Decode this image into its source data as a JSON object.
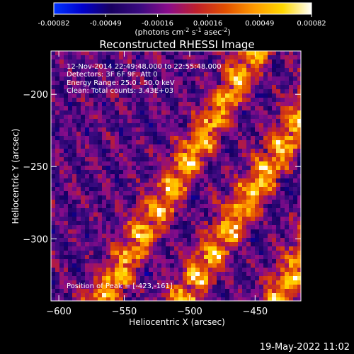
{
  "chart_data": {
    "type": "heatmap",
    "title": "Reconstructed RHESSI Image",
    "xlabel": "Heliocentric X (arcsec)",
    "ylabel": "Heliocentric Y (arcsec)",
    "xlim": [
      -606,
      -415
    ],
    "ylim": [
      -343,
      -170
    ],
    "x_ticks": [
      -600,
      -550,
      -500,
      -450
    ],
    "y_ticks": [
      -300,
      -250,
      -200
    ],
    "colorbar": {
      "range": [
        -0.00082,
        0.00082
      ],
      "ticks": [
        "-0.00082",
        "-0.00049",
        "-0.00016",
        "0.00016",
        "0.00049",
        "0.00082"
      ],
      "unit_label_parts": [
        "(photons cm",
        "-2",
        " s",
        "-1",
        " asec",
        "-2",
        ")"
      ],
      "colors": [
        "#0033ff",
        "#0000cc",
        "#180060",
        "#3a0a80",
        "#8a0c8a",
        "#c0202a",
        "#e25000",
        "#ff9a00",
        "#ffd800",
        "#ffffff"
      ]
    },
    "annotations": [
      "12-Nov-2014 22:49:48.000 to 22:55:48.000",
      "Detectors: 3F 6F 9F, Att 0",
      "Energy Range: 25.0 - 50.0 keV",
      "Clean:      Total counts: 3.43E+03"
    ],
    "peak_label": "Position of Peak = [-423,-161]",
    "peak": [
      -423,
      -161
    ],
    "bands": [
      {
        "x0": -566,
        "slope": 0.68,
        "width": 16,
        "amp": 0.00078
      },
      {
        "x0": -505,
        "slope": 0.72,
        "width": 17,
        "amp": 0.0008
      },
      {
        "x0": -432,
        "slope": 0.6,
        "width": 15,
        "amp": 0.00082
      }
    ],
    "background_level": -0.00022
  },
  "footer": {
    "date": "19-May-2022 11:02"
  }
}
